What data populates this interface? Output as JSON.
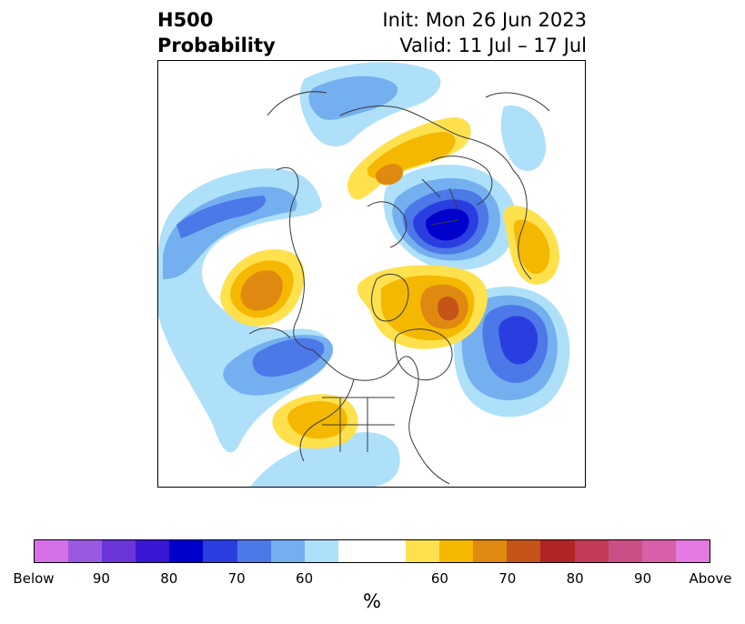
{
  "title": {
    "left_line1": "H500",
    "left_line2": "Probability",
    "right_line1": "Init: Mon 26 Jun 2023",
    "right_line2": "Valid: 11 Jul – 17 Jul"
  },
  "colorbar": {
    "colors": [
      "#d670e8",
      "#9a59e1",
      "#6a35d9",
      "#3a17d4",
      "#0000cd",
      "#2a3ee0",
      "#4d78e8",
      "#74aff0",
      "#aee0fa",
      "#ffffff",
      "#ffffff",
      "#ffe14e",
      "#f5b800",
      "#e08910",
      "#c55418",
      "#b02424",
      "#c23a55",
      "#cc4e87",
      "#da5fa8",
      "#e57ae0"
    ],
    "tick_labels": [
      "Below",
      "90",
      "80",
      "70",
      "60",
      "60",
      "70",
      "80",
      "90",
      "Above"
    ],
    "unit": "%"
  },
  "map": {
    "colors": {
      "light_blue": "#aee0fa",
      "mid_blue": "#74aff0",
      "blue": "#4d78e8",
      "deep_blue": "#2a3ee0",
      "navy": "#0000cd",
      "yellow": "#ffe14e",
      "gold": "#f5b800",
      "orange": "#e08910",
      "rust": "#c55418",
      "coast": "#3a3a3a"
    }
  }
}
